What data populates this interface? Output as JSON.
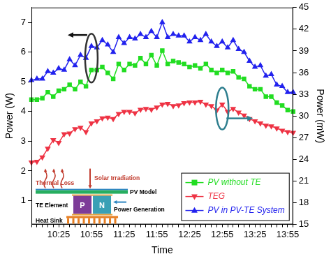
{
  "chart_data": {
    "type": "line",
    "x_label": "Time",
    "y_label": "Power (W)",
    "y2_label": "Power (mW)",
    "categories": [
      null,
      null,
      null,
      null,
      null,
      "10:25",
      null,
      null,
      null,
      null,
      null,
      "10:55",
      null,
      null,
      null,
      null,
      null,
      "11:25",
      null,
      null,
      null,
      null,
      null,
      "11:55",
      null,
      null,
      null,
      null,
      null,
      "12:25",
      null,
      null,
      null,
      null,
      null,
      "12:55",
      null,
      null,
      null,
      null,
      null,
      "13:25",
      null,
      null,
      null,
      null,
      null,
      "13:55",
      null
    ],
    "series": [
      {
        "name": "PV without TE",
        "color": "#22dd22",
        "marker": "square",
        "values": [
          4.4,
          4.4,
          4.45,
          4.65,
          4.5,
          4.7,
          4.75,
          4.9,
          4.75,
          5.0,
          4.85,
          5.4,
          5.4,
          5.5,
          5.3,
          5.1,
          5.6,
          5.4,
          5.6,
          5.55,
          5.8,
          5.6,
          5.9,
          5.55,
          6.05,
          5.6,
          5.7,
          5.65,
          5.6,
          5.5,
          5.55,
          5.45,
          5.6,
          5.4,
          5.3,
          5.4,
          5.3,
          5.35,
          5.15,
          5.1,
          4.85,
          4.75,
          4.75,
          4.5,
          4.5,
          4.3,
          4.2,
          4.05,
          4.0
        ]
      },
      {
        "name": "TEG",
        "color": "#ee3344",
        "marker": "triangle-down",
        "axis": "y2",
        "values": [
          23.6,
          23.7,
          24.3,
          25.5,
          26.7,
          26.3,
          27.5,
          27.6,
          28.2,
          28.4,
          27.8,
          29.0,
          29.3,
          29.7,
          29.8,
          29.6,
          30.3,
          30.6,
          30.6,
          30.4,
          30.9,
          31.0,
          30.9,
          31.2,
          31.6,
          31.7,
          31.4,
          31.5,
          31.8,
          31.9,
          31.9,
          32.0,
          31.6,
          31.4,
          30.8,
          31.6,
          30.6,
          31.0,
          30.5,
          30.1,
          29.6,
          29.3,
          29.0,
          28.7,
          28.6,
          28.3,
          28.0,
          27.8,
          27.7
        ]
      },
      {
        "name": "PV in PV-TE System",
        "color": "#2222ee",
        "marker": "triangle-up",
        "values": [
          5.05,
          5.1,
          5.1,
          5.35,
          5.3,
          5.45,
          5.4,
          5.75,
          5.55,
          5.9,
          5.8,
          6.2,
          6.15,
          6.4,
          6.25,
          6.0,
          6.5,
          6.3,
          6.5,
          6.45,
          6.6,
          6.5,
          6.7,
          6.5,
          7.0,
          6.5,
          6.6,
          6.55,
          6.55,
          6.35,
          6.5,
          6.4,
          6.6,
          6.35,
          6.2,
          6.35,
          6.15,
          6.4,
          6.1,
          6.0,
          5.7,
          5.5,
          5.55,
          5.2,
          5.25,
          4.9,
          4.85,
          4.65,
          4.65
        ]
      }
    ],
    "ylim": [
      0.2,
      7.5
    ],
    "yticks": [
      1,
      2,
      3,
      4,
      5,
      6,
      7
    ],
    "y2lim": [
      15,
      45
    ],
    "y2ticks": [
      15,
      18,
      21,
      24,
      27,
      30,
      33,
      36,
      39,
      42,
      45
    ],
    "grid": false,
    "legend": "lower right",
    "annotations": [
      "Thermal Loss",
      "Solar Irradiation",
      "PV Model",
      "TE Element",
      "P",
      "N",
      "Power Generation",
      "Heat Sink"
    ]
  }
}
